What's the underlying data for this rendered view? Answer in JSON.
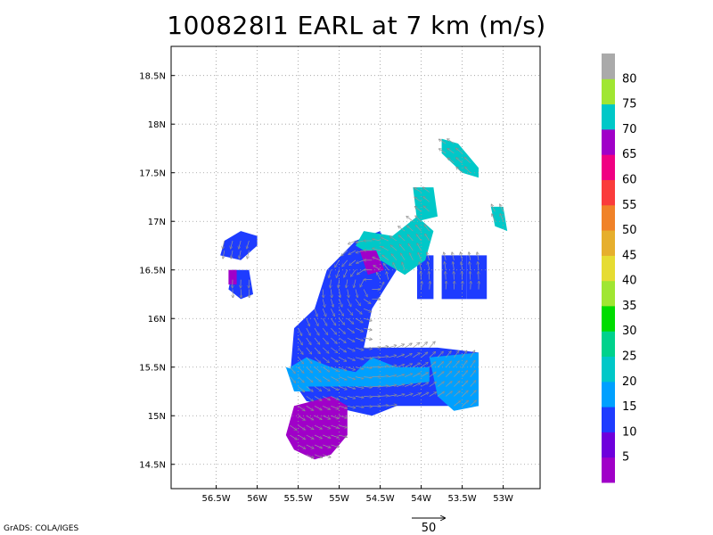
{
  "chart_data": {
    "type": "heatmap",
    "title": "100828I1 EARL at 7 km (m/s)",
    "xlabel": "",
    "ylabel": "",
    "xlim": [
      -57.05,
      -52.55
    ],
    "ylim": [
      14.25,
      18.8
    ],
    "x_ticks": [
      {
        "value": -56.5,
        "label": "56.5W"
      },
      {
        "value": -56.0,
        "label": "56W"
      },
      {
        "value": -55.5,
        "label": "55.5W"
      },
      {
        "value": -55.0,
        "label": "55W"
      },
      {
        "value": -54.5,
        "label": "54.5W"
      },
      {
        "value": -54.0,
        "label": "54W"
      },
      {
        "value": -53.5,
        "label": "53.5W"
      },
      {
        "value": -53.0,
        "label": "53W"
      }
    ],
    "y_ticks": [
      {
        "value": 14.5,
        "label": "14.5N"
      },
      {
        "value": 15.0,
        "label": "15N"
      },
      {
        "value": 15.5,
        "label": "15.5N"
      },
      {
        "value": 16.0,
        "label": "16N"
      },
      {
        "value": 16.5,
        "label": "16.5N"
      },
      {
        "value": 17.0,
        "label": "17N"
      },
      {
        "value": 17.5,
        "label": "17.5N"
      },
      {
        "value": 18.0,
        "label": "18N"
      },
      {
        "value": 18.5,
        "label": "18.5N"
      }
    ],
    "grid": true,
    "colorbar": {
      "labels": [
        "5",
        "10",
        "15",
        "20",
        "25",
        "30",
        "35",
        "40",
        "45",
        "50",
        "55",
        "60",
        "65",
        "70",
        "75",
        "80"
      ],
      "colors": [
        "#a000c8",
        "#6e00dc",
        "#1e3cff",
        "#00a0ff",
        "#00c8c8",
        "#00d28c",
        "#00dc00",
        "#a0e632",
        "#e6dc32",
        "#e6af2d",
        "#f08228",
        "#fa3c3c",
        "#f00082",
        "#a000c8",
        "#00c8c8",
        "#a0e632",
        "#aaaaaa"
      ]
    },
    "wind_regions": [
      {
        "speed_class": "10-15",
        "color": "#1e3cff",
        "polygon": [
          [
            -55.6,
            15.4
          ],
          [
            -55.55,
            15.9
          ],
          [
            -55.3,
            16.1
          ],
          [
            -55.15,
            16.5
          ],
          [
            -54.8,
            16.8
          ],
          [
            -54.5,
            16.9
          ],
          [
            -54.3,
            16.5
          ],
          [
            -54.6,
            16.1
          ],
          [
            -54.7,
            15.7
          ],
          [
            -53.8,
            15.7
          ],
          [
            -53.3,
            15.65
          ],
          [
            -53.3,
            15.1
          ],
          [
            -54.3,
            15.1
          ],
          [
            -54.6,
            15.0
          ],
          [
            -55.4,
            15.15
          ]
        ]
      },
      {
        "speed_class": "10-15",
        "color": "#1e3cff",
        "polygon": [
          [
            -56.45,
            16.65
          ],
          [
            -56.4,
            16.8
          ],
          [
            -56.2,
            16.9
          ],
          [
            -56.0,
            16.85
          ],
          [
            -56.0,
            16.75
          ],
          [
            -56.2,
            16.6
          ]
        ]
      },
      {
        "speed_class": "10-15",
        "color": "#1e3cff",
        "polygon": [
          [
            -56.3,
            16.5
          ],
          [
            -56.1,
            16.5
          ],
          [
            -56.05,
            16.25
          ],
          [
            -56.2,
            16.2
          ],
          [
            -56.35,
            16.3
          ]
        ]
      },
      {
        "speed_class": "10-15",
        "color": "#1e3cff",
        "polygon": [
          [
            -54.05,
            16.65
          ],
          [
            -53.85,
            16.65
          ],
          [
            -53.85,
            16.2
          ],
          [
            -54.05,
            16.2
          ]
        ]
      },
      {
        "speed_class": "10-15",
        "color": "#1e3cff",
        "polygon": [
          [
            -53.75,
            16.65
          ],
          [
            -53.45,
            16.65
          ],
          [
            -53.45,
            16.2
          ],
          [
            -53.75,
            16.2
          ]
        ]
      },
      {
        "speed_class": "10-15",
        "color": "#1e3cff",
        "polygon": [
          [
            -53.45,
            16.65
          ],
          [
            -53.2,
            16.65
          ],
          [
            -53.2,
            16.2
          ],
          [
            -53.45,
            16.2
          ]
        ]
      },
      {
        "speed_class": "20-25",
        "color": "#00a0ff",
        "polygon": [
          [
            -55.6,
            15.5
          ],
          [
            -55.4,
            15.6
          ],
          [
            -55.1,
            15.5
          ],
          [
            -54.8,
            15.45
          ],
          [
            -54.6,
            15.6
          ],
          [
            -54.3,
            15.5
          ],
          [
            -53.9,
            15.5
          ],
          [
            -53.9,
            15.35
          ],
          [
            -54.4,
            15.3
          ],
          [
            -55.0,
            15.3
          ],
          [
            -55.4,
            15.3
          ]
        ]
      },
      {
        "speed_class": "20-25",
        "color": "#00a0ff",
        "polygon": [
          [
            -53.9,
            15.6
          ],
          [
            -53.3,
            15.65
          ],
          [
            -53.3,
            15.1
          ],
          [
            -53.6,
            15.05
          ],
          [
            -53.8,
            15.2
          ]
        ]
      },
      {
        "speed_class": "20-25",
        "color": "#00a0ff",
        "polygon": [
          [
            -55.65,
            15.5
          ],
          [
            -55.45,
            15.45
          ],
          [
            -55.35,
            15.25
          ],
          [
            -55.55,
            15.25
          ]
        ]
      },
      {
        "speed_class": "25-30",
        "color": "#00c8c8",
        "polygon": [
          [
            -54.7,
            16.9
          ],
          [
            -54.35,
            16.85
          ],
          [
            -54.05,
            17.05
          ],
          [
            -53.85,
            16.9
          ],
          [
            -53.95,
            16.6
          ],
          [
            -54.2,
            16.45
          ],
          [
            -54.5,
            16.6
          ],
          [
            -54.8,
            16.75
          ]
        ]
      },
      {
        "speed_class": "25-30",
        "color": "#00c8c8",
        "polygon": [
          [
            -54.1,
            17.35
          ],
          [
            -53.85,
            17.35
          ],
          [
            -53.8,
            17.05
          ],
          [
            -54.05,
            17.0
          ]
        ]
      },
      {
        "speed_class": "25-30",
        "color": "#00c8c8",
        "polygon": [
          [
            -53.75,
            17.85
          ],
          [
            -53.55,
            17.8
          ],
          [
            -53.3,
            17.55
          ],
          [
            -53.3,
            17.45
          ],
          [
            -53.5,
            17.5
          ],
          [
            -53.75,
            17.7
          ]
        ]
      },
      {
        "speed_class": "25-30",
        "color": "#00c8c8",
        "polygon": [
          [
            -53.15,
            17.15
          ],
          [
            -53.0,
            17.15
          ],
          [
            -52.95,
            16.9
          ],
          [
            -53.1,
            16.95
          ]
        ]
      },
      {
        "speed_class": "5-10",
        "color": "#a000c8",
        "polygon": [
          [
            -55.55,
            15.1
          ],
          [
            -55.1,
            15.2
          ],
          [
            -54.9,
            15.1
          ],
          [
            -54.9,
            14.8
          ],
          [
            -55.1,
            14.6
          ],
          [
            -55.3,
            14.55
          ],
          [
            -55.55,
            14.65
          ],
          [
            -55.65,
            14.8
          ]
        ]
      },
      {
        "speed_class": "5-10",
        "color": "#a000c8",
        "polygon": [
          [
            -54.75,
            16.7
          ],
          [
            -54.55,
            16.7
          ],
          [
            -54.45,
            16.5
          ],
          [
            -54.65,
            16.45
          ]
        ]
      },
      {
        "speed_class": "5-10",
        "color": "#a000c8",
        "polygon": [
          [
            -56.35,
            16.5
          ],
          [
            -56.25,
            16.5
          ],
          [
            -56.25,
            16.35
          ],
          [
            -56.35,
            16.35
          ]
        ]
      }
    ],
    "reference_vector": {
      "magnitude": 50,
      "label": "50"
    }
  },
  "credit": "GrADS: COLA/IGES"
}
